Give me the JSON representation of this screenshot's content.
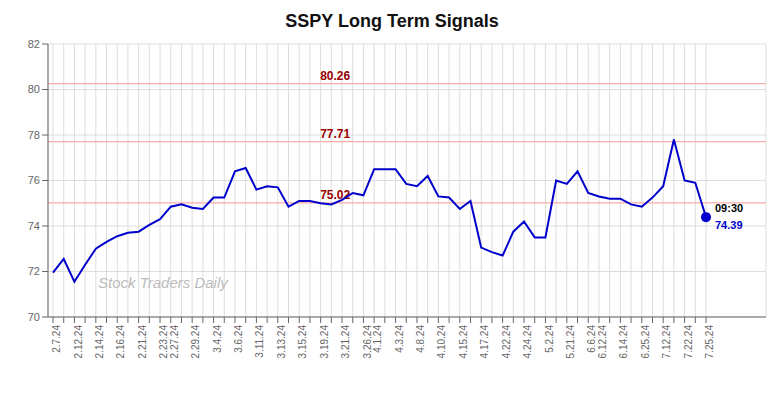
{
  "chart_data": {
    "type": "line",
    "title": "SSPY Long Term Signals",
    "categories": [
      "2.7.24",
      null,
      "2.12.24",
      null,
      "2.14.24",
      null,
      "2.16.24",
      null,
      "2.21.24",
      null,
      "2.23.24",
      "2.27.24",
      null,
      "2.29.24",
      null,
      "3.4.24",
      null,
      "3.6.24",
      null,
      "3.11.24",
      null,
      "3.13.24",
      null,
      "3.15.24",
      null,
      "3.19.24",
      null,
      "3.21.24",
      null,
      "3.26.24",
      "4.1.24",
      null,
      "4.3.24",
      null,
      "4.8.24",
      null,
      "4.10.24",
      null,
      "4.15.24",
      null,
      "4.17.24",
      null,
      "4.22.24",
      null,
      "4.24.24",
      null,
      "5.2.24",
      null,
      "5.21.24",
      null,
      "6.6.24",
      "6.12.24",
      null,
      "6.14.24",
      null,
      "6.25.24",
      null,
      "7.12.24",
      null,
      "7.22.24",
      null,
      "7.25.24"
    ],
    "values": [
      71.95,
      72.55,
      71.55,
      72.3,
      73.0,
      73.3,
      73.55,
      73.7,
      73.75,
      74.05,
      74.3,
      74.85,
      74.95,
      74.8,
      74.75,
      75.25,
      75.25,
      76.4,
      76.55,
      75.6,
      75.75,
      75.7,
      74.85,
      75.1,
      75.1,
      75.0,
      74.95,
      75.15,
      75.45,
      75.35,
      76.5,
      76.5,
      76.5,
      75.85,
      75.75,
      76.2,
      75.3,
      75.25,
      74.75,
      75.1,
      73.05,
      72.85,
      72.7,
      73.75,
      74.2,
      73.5,
      73.5,
      76.0,
      75.85,
      76.4,
      75.45,
      75.3,
      75.2,
      75.2,
      74.95,
      74.85,
      75.25,
      75.75,
      77.8,
      76.0,
      75.9,
      74.39
    ],
    "color": "#0000cc",
    "ylim": [
      70,
      82
    ],
    "yticks": [
      70,
      72,
      74,
      76,
      78,
      80,
      82
    ],
    "grid": true,
    "hlines": [
      {
        "y": 80.26,
        "label": "80.26",
        "color": "#ffaaaa",
        "label_color": "#990000"
      },
      {
        "y": 77.71,
        "label": "77.71",
        "color": "#ffaaaa",
        "label_color": "#990000"
      },
      {
        "y": 75.02,
        "label": "75.02",
        "color": "#ffaaaa",
        "label_color": "#990000"
      }
    ],
    "end_labels": [
      {
        "text": "09:30",
        "color": "#000000"
      },
      {
        "text": "74.39",
        "color": "#0000cc"
      }
    ],
    "watermark": {
      "text": "Stock Traders Daily",
      "color": "#bbbbbb"
    }
  }
}
